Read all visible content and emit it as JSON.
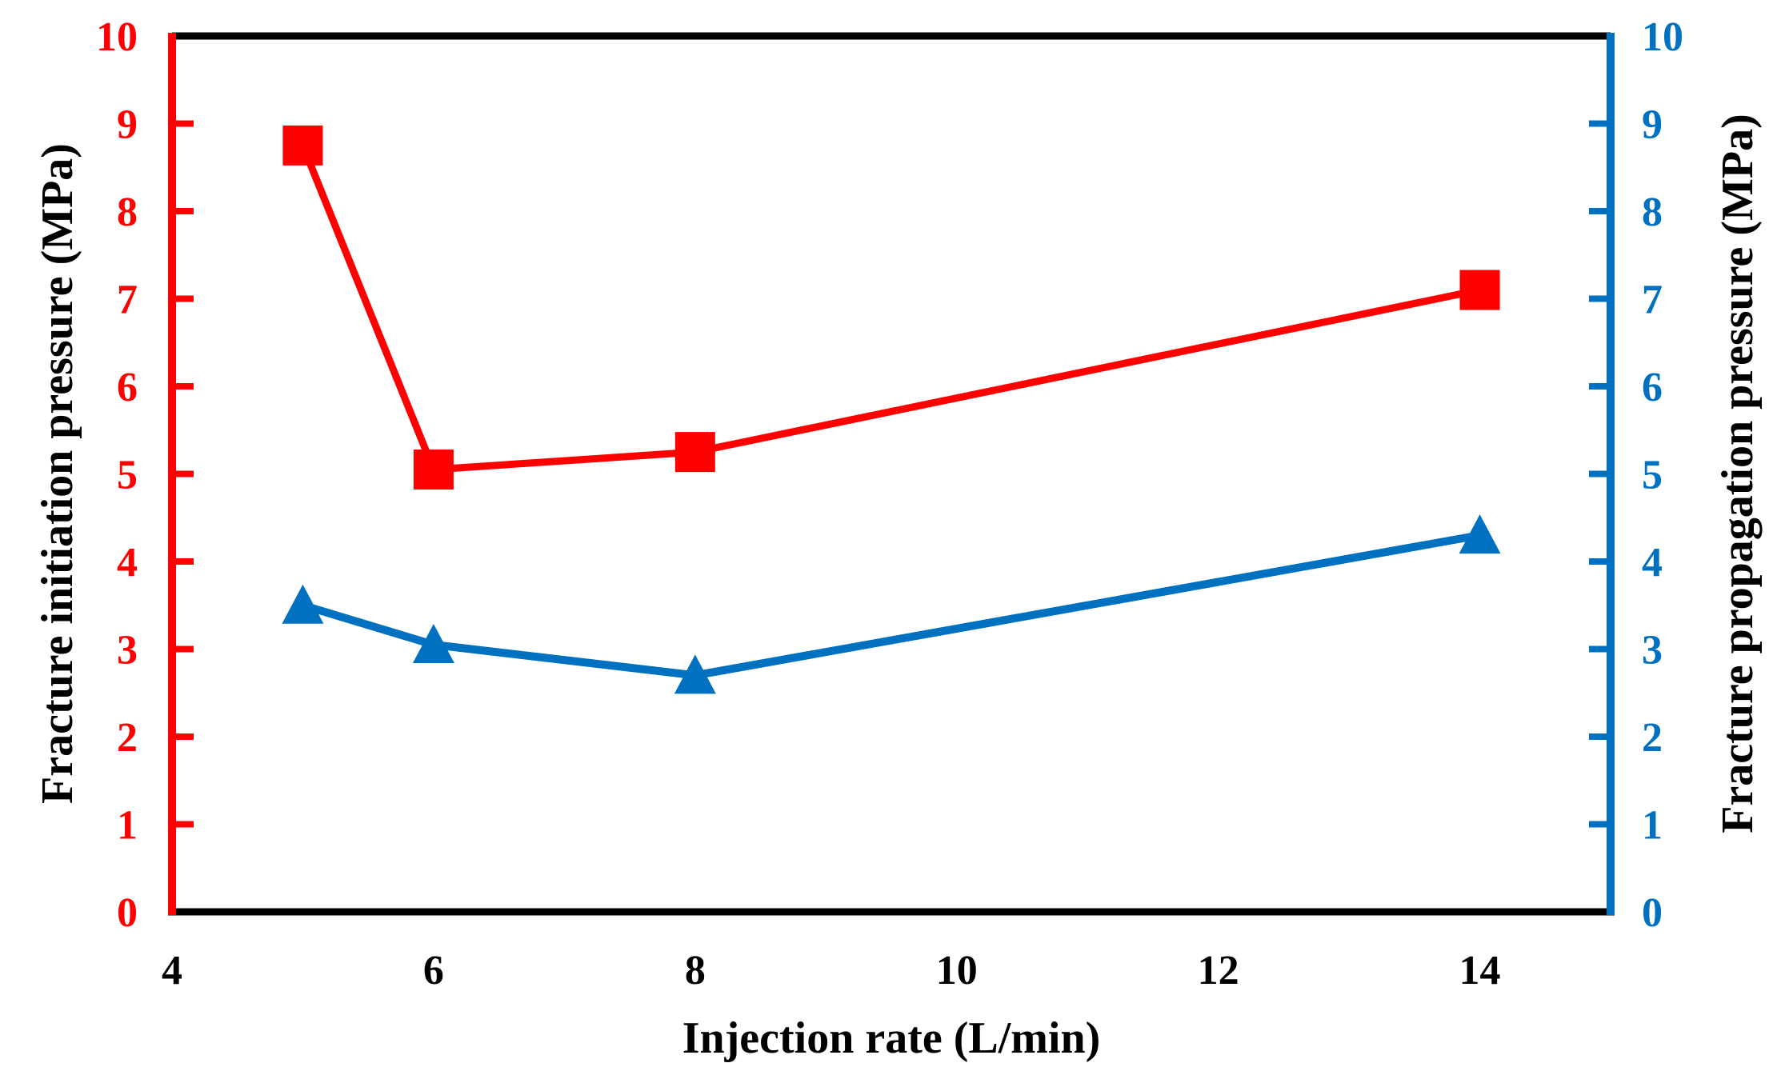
{
  "figure": {
    "background": "#ffffff",
    "border_color": "#000000"
  },
  "chart_data": {
    "type": "line",
    "x": [
      5,
      6,
      8,
      14
    ],
    "series": [
      {
        "name": "Fracture initiation pressure",
        "axis": "left",
        "color": "#FF0000",
        "marker": "square",
        "values": [
          8.75,
          5.05,
          5.25,
          7.1
        ]
      },
      {
        "name": "Fracture propagation pressure",
        "axis": "right",
        "color": "#0070C0",
        "marker": "triangle",
        "values": [
          3.5,
          3.05,
          2.7,
          4.3
        ]
      }
    ],
    "xlabel": "Injection rate (L/min)",
    "ylabel_left": "Fracture initiation pressure (MPa)",
    "ylabel_right": "Fracture propagation pressure (MPa)",
    "xlim": [
      4,
      15
    ],
    "ylim": [
      0,
      10
    ],
    "x_ticks": [
      4,
      6,
      8,
      10,
      12,
      14
    ],
    "y_ticks": [
      0,
      1,
      2,
      3,
      4,
      5,
      6,
      7,
      8,
      9,
      10
    ],
    "left_axis_color": "#FF0000",
    "right_axis_color": "#0070C0",
    "x_tick_label_color": "#000000",
    "grid": false,
    "legend": "none"
  }
}
